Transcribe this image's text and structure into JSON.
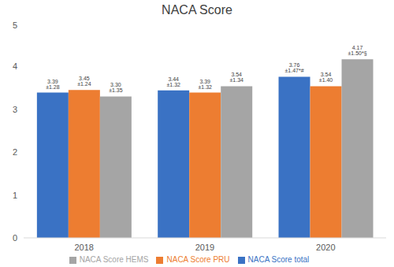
{
  "chart_data": {
    "type": "bar",
    "title": "NACA Score",
    "categories": [
      "2018",
      "2019",
      "2020"
    ],
    "series": [
      {
        "name": "NACA Score total",
        "color": "#3a72c4",
        "values": [
          3.39,
          3.44,
          3.76
        ],
        "value_labels": [
          "3.39 ±1.28",
          "3.44 ±1.32",
          "3.76 ±1.47*#"
        ]
      },
      {
        "name": "NACA Score PRU",
        "color": "#ed7d31",
        "values": [
          3.45,
          3.39,
          3.54
        ],
        "value_labels": [
          "3.45 ±1.24",
          "3.39 ±1.32",
          "3.54 ±1.40"
        ]
      },
      {
        "name": "NACA Score HEMS",
        "color": "#a5a5a5",
        "values": [
          3.3,
          3.54,
          4.17
        ],
        "value_labels": [
          "3.30 ±1.35",
          "3.54 ±1.34",
          "4.17 ±1.50*§"
        ]
      }
    ],
    "ylim": [
      0,
      5
    ],
    "yticks": [
      0,
      1,
      2,
      3,
      4,
      5
    ],
    "grid": false,
    "legend": "bottom",
    "data_labels": true
  }
}
